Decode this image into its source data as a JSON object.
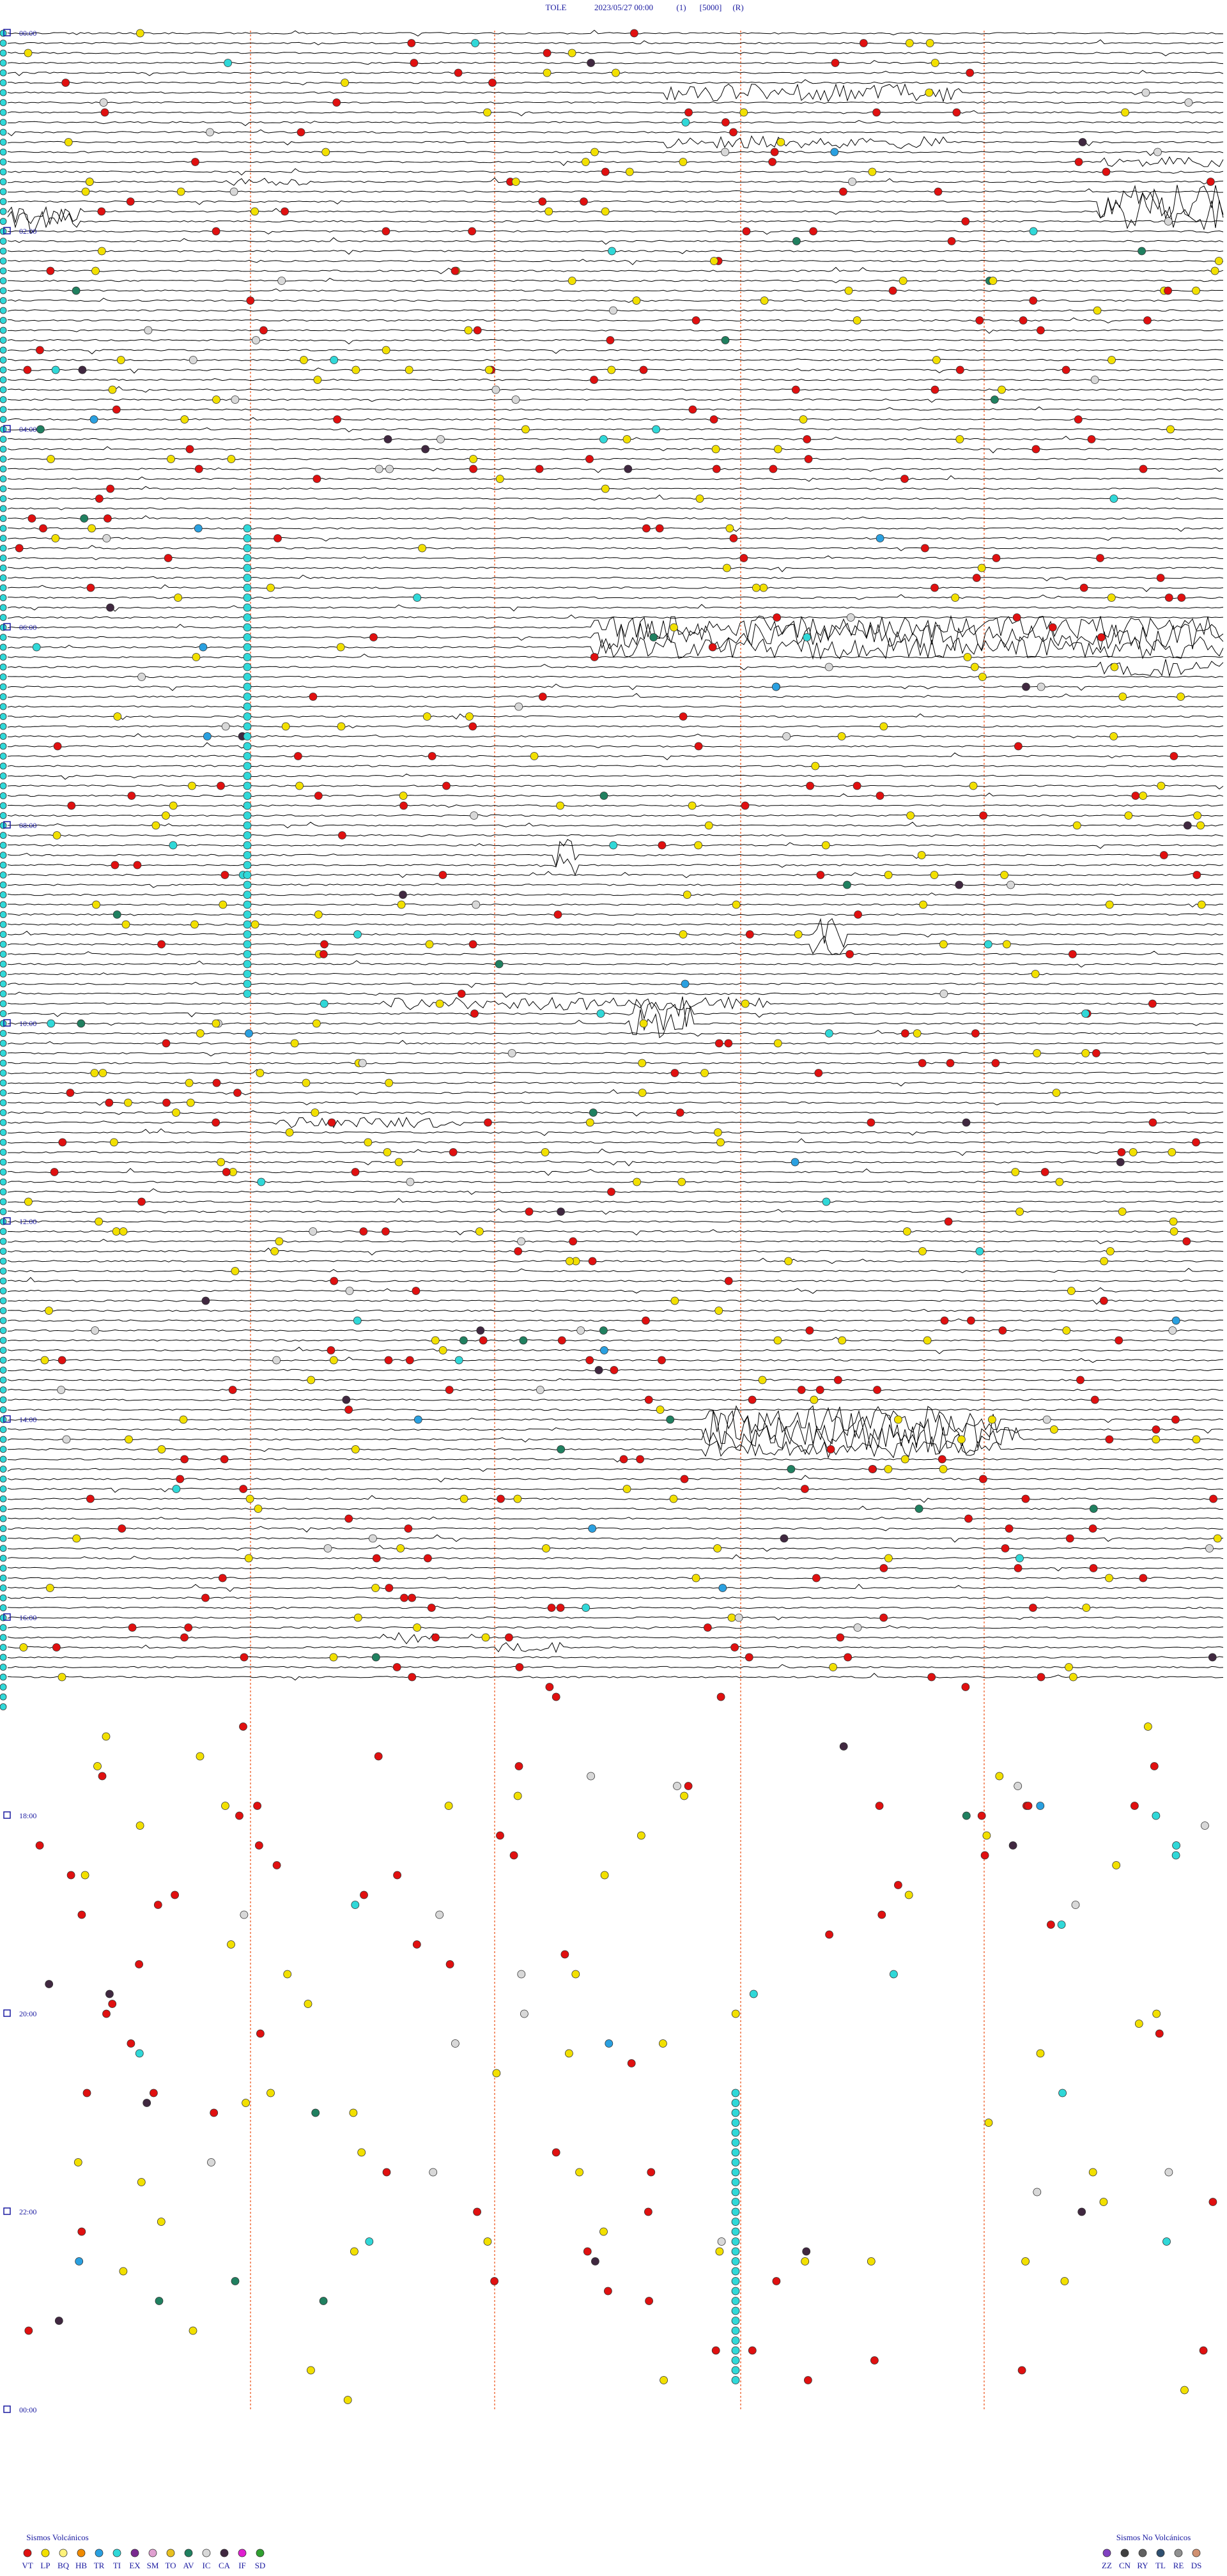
{
  "header": {
    "station": "TOLE",
    "datetime": "2023/05/27 00:00",
    "channel": "(1)",
    "scale": "[5000]",
    "mode": "(R)"
  },
  "hour_labels": [
    "00:00",
    "02:00",
    "04:00",
    "06:00",
    "08:00",
    "10:00",
    "12:00",
    "14:00",
    "16:00",
    "18:00",
    "20:00",
    "22:00",
    "00:00"
  ],
  "legend": {
    "volcanic": {
      "title": "Sismos Volcánicos",
      "items": [
        {
          "code": "VT",
          "color": "#e01010"
        },
        {
          "code": "LP",
          "color": "#f2e000"
        },
        {
          "code": "BQ",
          "color": "#fff27a"
        },
        {
          "code": "HB",
          "color": "#f08a00"
        },
        {
          "code": "TR",
          "color": "#2aa0e0"
        },
        {
          "code": "TI",
          "color": "#30d8d8"
        },
        {
          "code": "EX",
          "color": "#7a2a90"
        },
        {
          "code": "SM",
          "color": "#e0a0d0"
        },
        {
          "code": "TO",
          "color": "#e8c020"
        },
        {
          "code": "AV",
          "color": "#208060"
        },
        {
          "code": "IC",
          "color": "#d8d8d8"
        },
        {
          "code": "CA",
          "color": "#402840"
        },
        {
          "code": "IF",
          "color": "#e020d0"
        },
        {
          "code": "SD",
          "color": "#30a030"
        }
      ]
    },
    "non_volcanic": {
      "title": "Sismos No Volcánicos",
      "items": [
        {
          "code": "ZZ",
          "color": "#8040c0"
        },
        {
          "code": "CN",
          "color": "#404040"
        },
        {
          "code": "RY",
          "color": "#606060"
        },
        {
          "code": "TL",
          "color": "#305070"
        },
        {
          "code": "RE",
          "color": "#909090"
        },
        {
          "code": "DS",
          "color": "#d09070"
        }
      ]
    }
  }
}
